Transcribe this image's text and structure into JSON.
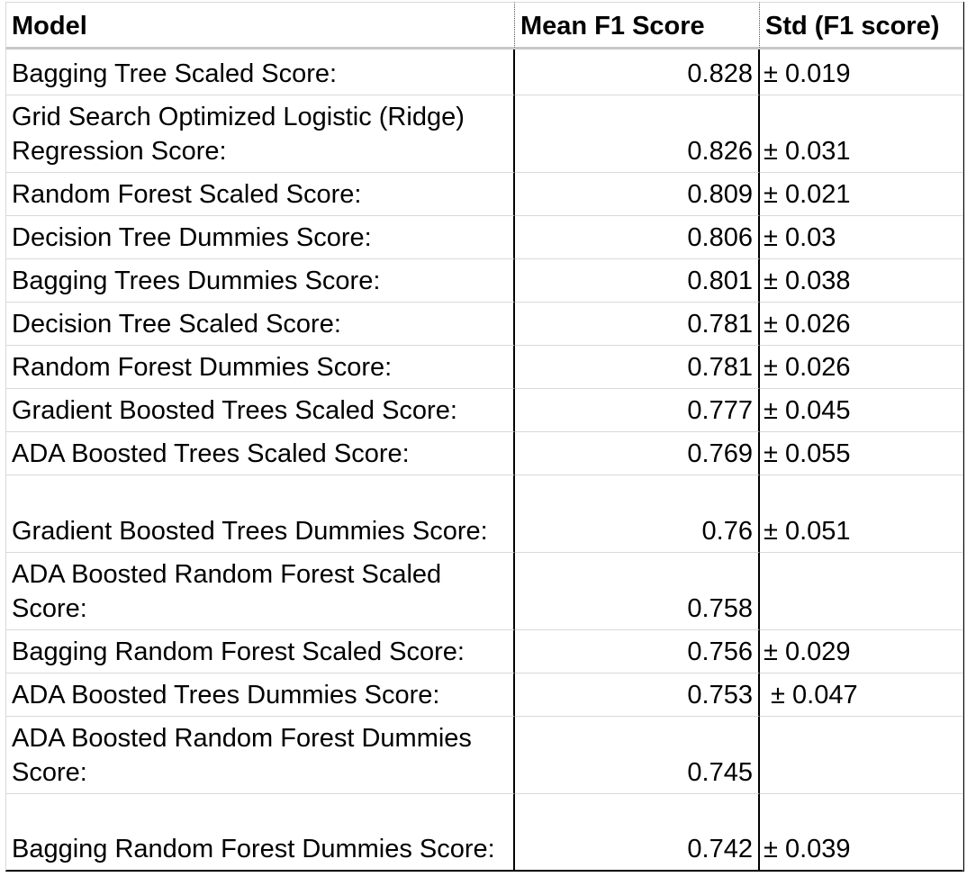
{
  "table": {
    "headers": [
      "Model",
      "Mean F1 Score",
      "Std (F1 score)"
    ],
    "rows": [
      {
        "model": "Bagging Tree Scaled Score:",
        "mean": "0.828",
        "std": "± 0.019"
      },
      {
        "model": "Grid Search Optimized Logistic (Ridge) Regression Score:",
        "mean": "0.826",
        "std": "± 0.031"
      },
      {
        "model": "Random Forest Scaled Score:",
        "mean": "0.809",
        "std": "± 0.021"
      },
      {
        "model": "Decision Tree Dummies Score:",
        "mean": "0.806",
        "std": "± 0.03"
      },
      {
        "model": "Bagging Trees Dummies Score:",
        "mean": "0.801",
        "std": "± 0.038"
      },
      {
        "model": "Decision Tree Scaled Score:",
        "mean": "0.781",
        "std": "± 0.026"
      },
      {
        "model": "Random Forest Dummies Score:",
        "mean": "0.781",
        "std": "± 0.026"
      },
      {
        "model": "Gradient Boosted Trees Scaled Score:",
        "mean": "0.777",
        "std": "± 0.045"
      },
      {
        "model": "ADA Boosted Trees Scaled Score:",
        "mean": "0.769",
        "std": "± 0.055"
      },
      {
        "model": "Gradient Boosted Trees Dummies Score:",
        "mean": "0.76",
        "std": "± 0.051"
      },
      {
        "model": "ADA Boosted Random Forest Scaled Score:",
        "mean": "0.758",
        "std": ""
      },
      {
        "model": "Bagging Random Forest Scaled Score:",
        "mean": "0.756",
        "std": "± 0.029"
      },
      {
        "model": "ADA Boosted Trees Dummies Score:",
        "mean": "0.753",
        "std": " ± 0.047"
      },
      {
        "model": "ADA Boosted Random Forest Dummies Score:",
        "mean": "0.745",
        "std": ""
      },
      {
        "model": "Bagging Random Forest Dummies Score:",
        "mean": "0.742",
        "std": "± 0.039"
      }
    ]
  }
}
